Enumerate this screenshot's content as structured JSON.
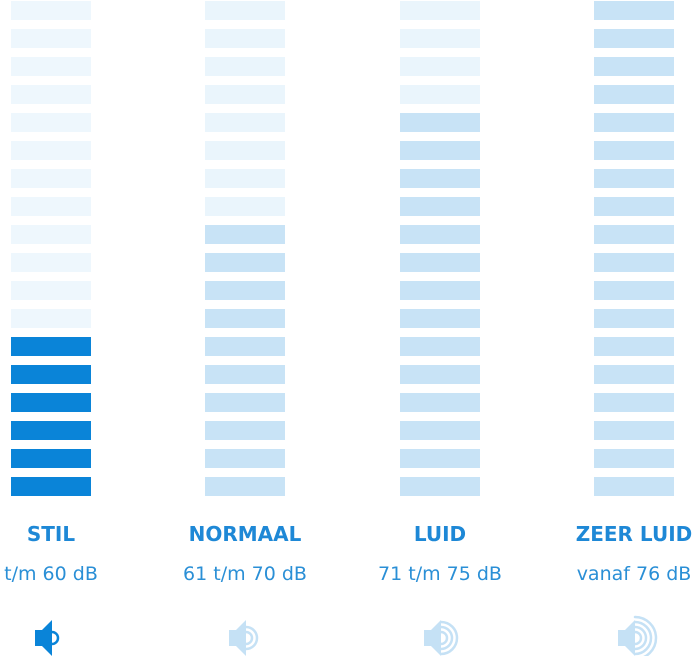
{
  "total_bars": 18,
  "levels": [
    {
      "label": "STIL",
      "range": "t/m 60 dB",
      "bars": 6,
      "active": true
    },
    {
      "label": "NORMAAL",
      "range": "61 t/m 70 dB",
      "bars": 10,
      "active": false
    },
    {
      "label": "LUID",
      "range": "71 t/m 75 dB",
      "bars": 14,
      "active": false
    },
    {
      "label": "ZEER LUID",
      "range": "vanaf 76 dB",
      "bars": 18,
      "active": false
    }
  ]
}
